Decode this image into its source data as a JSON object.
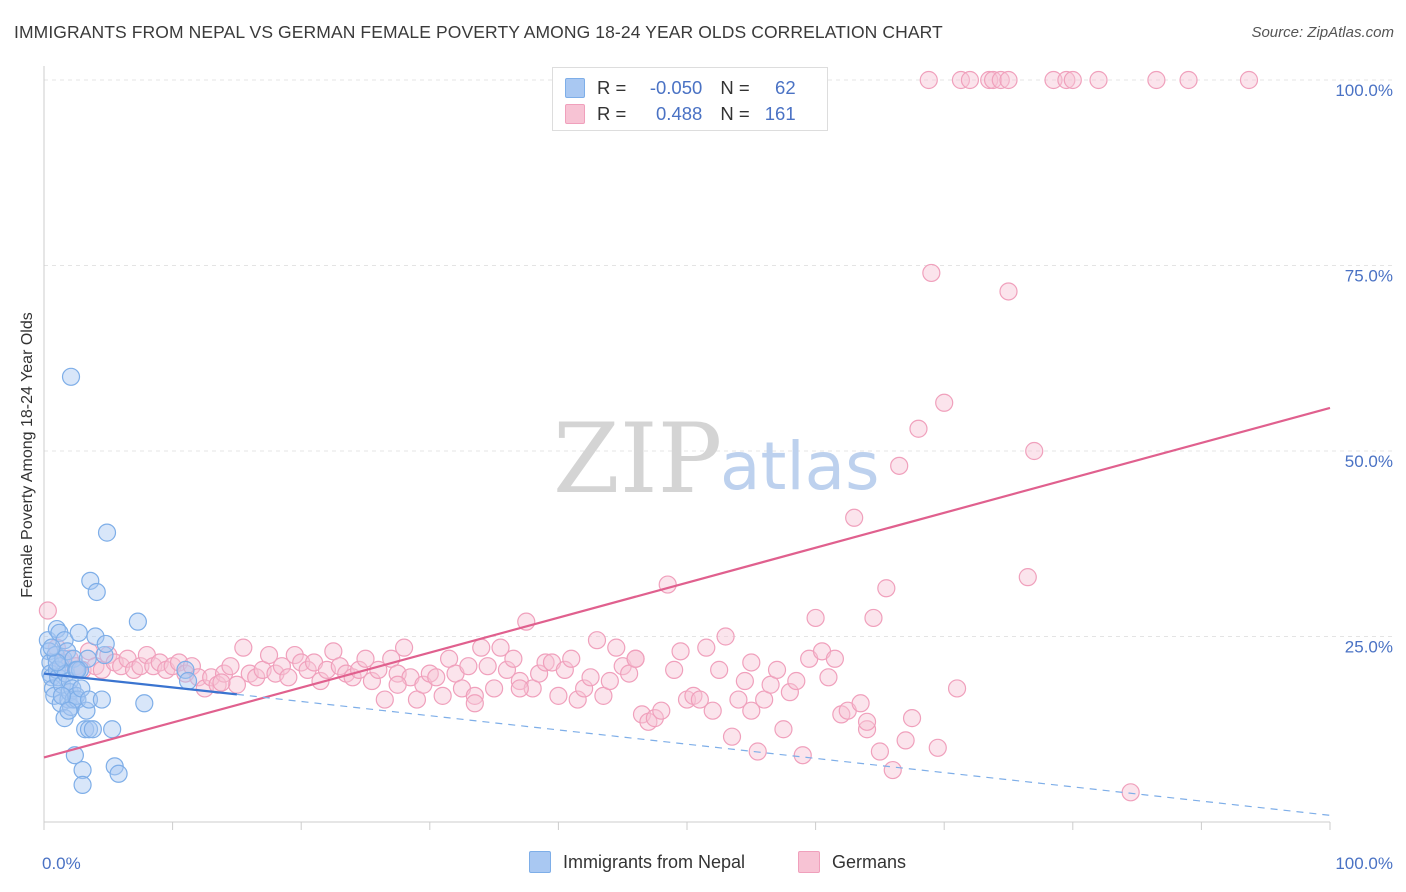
{
  "title": "IMMIGRANTS FROM NEPAL VS GERMAN FEMALE POVERTY AMONG 18-24 YEAR OLDS CORRELATION CHART",
  "source": "Source: ZipAtlas.com",
  "watermark": {
    "zip": "ZIP",
    "atlas": "atlas"
  },
  "colors": {
    "blue": "#7eaee8",
    "blue_line": "#3a74d0",
    "pink": "#f0a0bc",
    "pink_line": "#e0608e",
    "tick": "#4a72c4"
  },
  "legend": {
    "rows": [
      {
        "r_label": "R =",
        "r_value": "-0.050",
        "n_label": "N =",
        "n_value": "62",
        "color": "#a9c8f2"
      },
      {
        "r_label": "R =",
        "r_value": "0.488",
        "n_label": "N =",
        "n_value": "161",
        "color": "#f7c3d4"
      }
    ]
  },
  "chart_data": {
    "type": "scatter",
    "title": "IMMIGRANTS FROM NEPAL VS GERMAN FEMALE POVERTY AMONG 18-24 YEAR OLDS CORRELATION CHART",
    "xlabel": "",
    "ylabel": "Female Poverty Among 18-24 Year Olds",
    "xlim": [
      0,
      100
    ],
    "ylim": [
      0,
      100
    ],
    "x_tick_labels": [
      "0.0%",
      "100.0%"
    ],
    "y_tick_labels": [
      "25.0%",
      "50.0%",
      "75.0%",
      "100.0%"
    ],
    "y_ticks": [
      25,
      50,
      75,
      100
    ],
    "grid": true,
    "legend_position": "top-center",
    "series": [
      {
        "name": "Immigrants from Nepal",
        "color": "#7eaee8",
        "trend": {
          "x": [
            0,
            15
          ],
          "y": [
            20.0,
            17.2
          ],
          "dashed_extension": {
            "x": [
              15,
              100
            ],
            "y": [
              17.2,
              0.9
            ]
          }
        },
        "points": [
          [
            0.3,
            24.5
          ],
          [
            0.4,
            23.0
          ],
          [
            0.5,
            21.5
          ],
          [
            0.5,
            20.0
          ],
          [
            0.6,
            19.5
          ],
          [
            0.7,
            18.0
          ],
          [
            0.8,
            17.0
          ],
          [
            0.9,
            22.5
          ],
          [
            1.0,
            26.0
          ],
          [
            1.0,
            20.5
          ],
          [
            1.1,
            19.5
          ],
          [
            1.2,
            25.5
          ],
          [
            1.3,
            16.0
          ],
          [
            1.3,
            21.0
          ],
          [
            1.4,
            18.5
          ],
          [
            1.5,
            22.0
          ],
          [
            1.6,
            24.5
          ],
          [
            1.6,
            14.0
          ],
          [
            1.7,
            20.0
          ],
          [
            1.8,
            23.0
          ],
          [
            1.9,
            16.5
          ],
          [
            2.0,
            19.0
          ],
          [
            2.0,
            17.5
          ],
          [
            2.1,
            15.5
          ],
          [
            2.2,
            18.0
          ],
          [
            2.3,
            16.5
          ],
          [
            2.3,
            22.0
          ],
          [
            2.4,
            9.0
          ],
          [
            2.5,
            20.5
          ],
          [
            2.5,
            17.0
          ],
          [
            2.6,
            16.5
          ],
          [
            2.7,
            25.5
          ],
          [
            2.8,
            20.5
          ],
          [
            2.9,
            18.0
          ],
          [
            3.0,
            7.0
          ],
          [
            3.0,
            5.0
          ],
          [
            3.2,
            12.5
          ],
          [
            3.3,
            15.0
          ],
          [
            3.5,
            16.5
          ],
          [
            3.5,
            12.5
          ],
          [
            3.8,
            12.5
          ],
          [
            3.4,
            22.0
          ],
          [
            3.6,
            32.5
          ],
          [
            4.0,
            25.0
          ],
          [
            4.1,
            31.0
          ],
          [
            4.5,
            16.5
          ],
          [
            4.7,
            22.5
          ],
          [
            4.8,
            24.0
          ],
          [
            4.9,
            39.0
          ],
          [
            5.3,
            12.5
          ],
          [
            5.5,
            7.5
          ],
          [
            5.8,
            6.5
          ],
          [
            7.3,
            27.0
          ],
          [
            7.8,
            16.0
          ],
          [
            11.0,
            20.5
          ],
          [
            11.2,
            19.0
          ],
          [
            2.1,
            60.0
          ],
          [
            1.0,
            21.5
          ],
          [
            1.4,
            17.0
          ],
          [
            0.6,
            23.5
          ],
          [
            2.6,
            20.5
          ],
          [
            1.9,
            15.0
          ]
        ]
      },
      {
        "name": "Germans",
        "color": "#f0a0bc",
        "trend": {
          "x": [
            0,
            100
          ],
          "y": [
            8.7,
            55.8
          ]
        },
        "points": [
          [
            0.3,
            28.5
          ],
          [
            1.0,
            23.5
          ],
          [
            1.5,
            21.5
          ],
          [
            2.0,
            22.0
          ],
          [
            2.5,
            21.0
          ],
          [
            3.0,
            20.5
          ],
          [
            3.5,
            23.0
          ],
          [
            4.0,
            21.0
          ],
          [
            4.5,
            20.5
          ],
          [
            5.0,
            22.5
          ],
          [
            5.5,
            21.5
          ],
          [
            6.0,
            21.0
          ],
          [
            6.5,
            22.0
          ],
          [
            7.0,
            20.5
          ],
          [
            7.5,
            21.0
          ],
          [
            8.0,
            22.5
          ],
          [
            8.5,
            21.0
          ],
          [
            9.0,
            21.5
          ],
          [
            9.5,
            20.5
          ],
          [
            10.0,
            21.0
          ],
          [
            10.5,
            21.5
          ],
          [
            11.0,
            20.0
          ],
          [
            11.5,
            21.0
          ],
          [
            12.0,
            19.5
          ],
          [
            12.5,
            18.0
          ],
          [
            13.0,
            19.5
          ],
          [
            13.5,
            18.5
          ],
          [
            14.0,
            20.0
          ],
          [
            14.5,
            21.0
          ],
          [
            15.0,
            18.5
          ],
          [
            15.5,
            23.5
          ],
          [
            16.0,
            20.0
          ],
          [
            16.5,
            19.5
          ],
          [
            17.0,
            20.5
          ],
          [
            17.5,
            22.5
          ],
          [
            18.0,
            20.0
          ],
          [
            18.5,
            21.0
          ],
          [
            19.0,
            19.5
          ],
          [
            19.5,
            22.5
          ],
          [
            20.0,
            21.5
          ],
          [
            20.5,
            20.5
          ],
          [
            21.0,
            21.5
          ],
          [
            21.5,
            19.0
          ],
          [
            22.0,
            20.5
          ],
          [
            22.5,
            23.0
          ],
          [
            23.0,
            21.0
          ],
          [
            23.5,
            20.0
          ],
          [
            24.0,
            19.5
          ],
          [
            24.5,
            20.5
          ],
          [
            25.0,
            22.0
          ],
          [
            25.5,
            19.0
          ],
          [
            26.0,
            20.5
          ],
          [
            26.5,
            16.5
          ],
          [
            27.0,
            22.0
          ],
          [
            27.5,
            20.0
          ],
          [
            28.0,
            23.5
          ],
          [
            28.5,
            19.5
          ],
          [
            29.0,
            16.5
          ],
          [
            29.5,
            18.5
          ],
          [
            30.0,
            20.0
          ],
          [
            30.5,
            19.5
          ],
          [
            31.0,
            17.0
          ],
          [
            31.5,
            22.0
          ],
          [
            32.0,
            20.0
          ],
          [
            32.5,
            18.0
          ],
          [
            33.0,
            21.0
          ],
          [
            33.5,
            17.0
          ],
          [
            34.0,
            23.5
          ],
          [
            34.5,
            21.0
          ],
          [
            35.0,
            18.0
          ],
          [
            35.5,
            23.5
          ],
          [
            36.0,
            20.5
          ],
          [
            36.5,
            22.0
          ],
          [
            37.0,
            19.0
          ],
          [
            37.5,
            27.0
          ],
          [
            38.0,
            18.0
          ],
          [
            38.5,
            20.0
          ],
          [
            39.0,
            21.5
          ],
          [
            39.5,
            21.5
          ],
          [
            40.0,
            17.0
          ],
          [
            40.5,
            20.5
          ],
          [
            41.0,
            22.0
          ],
          [
            41.5,
            16.5
          ],
          [
            42.0,
            18.0
          ],
          [
            42.5,
            19.5
          ],
          [
            43.0,
            24.5
          ],
          [
            43.5,
            17.0
          ],
          [
            44.0,
            19.0
          ],
          [
            44.5,
            23.5
          ],
          [
            45.0,
            21.0
          ],
          [
            45.5,
            20.0
          ],
          [
            46.0,
            22.0
          ],
          [
            46.5,
            14.5
          ],
          [
            47.0,
            13.5
          ],
          [
            47.5,
            14.0
          ],
          [
            48.0,
            15.0
          ],
          [
            48.5,
            32.0
          ],
          [
            49.0,
            20.5
          ],
          [
            49.5,
            23.0
          ],
          [
            50.0,
            16.5
          ],
          [
            50.5,
            17.0
          ],
          [
            51.0,
            16.5
          ],
          [
            51.5,
            23.5
          ],
          [
            52.0,
            15.0
          ],
          [
            52.5,
            20.5
          ],
          [
            53.0,
            25.0
          ],
          [
            53.5,
            11.5
          ],
          [
            54.0,
            16.5
          ],
          [
            54.5,
            19.0
          ],
          [
            55.0,
            15.0
          ],
          [
            55.5,
            9.5
          ],
          [
            56.0,
            16.5
          ],
          [
            56.5,
            18.5
          ],
          [
            57.0,
            20.5
          ],
          [
            57.5,
            12.5
          ],
          [
            58.0,
            17.5
          ],
          [
            58.5,
            19.0
          ],
          [
            59.0,
            9.0
          ],
          [
            59.5,
            22.0
          ],
          [
            60.0,
            27.5
          ],
          [
            60.5,
            23.0
          ],
          [
            61.0,
            19.5
          ],
          [
            61.5,
            22.0
          ],
          [
            62.0,
            14.5
          ],
          [
            62.5,
            15.0
          ],
          [
            63.0,
            41.0
          ],
          [
            63.5,
            16.0
          ],
          [
            64.0,
            12.5
          ],
          [
            64.5,
            27.5
          ],
          [
            65.0,
            9.5
          ],
          [
            65.5,
            31.5
          ],
          [
            66.0,
            7.0
          ],
          [
            66.5,
            48.0
          ],
          [
            67.0,
            11.0
          ],
          [
            67.5,
            14.0
          ],
          [
            68.0,
            53.0
          ],
          [
            69.0,
            74.0
          ],
          [
            69.5,
            10.0
          ],
          [
            70.0,
            56.5
          ],
          [
            71.0,
            18.0
          ],
          [
            75.0,
            71.5
          ],
          [
            76.5,
            33.0
          ],
          [
            77.0,
            50.0
          ],
          [
            84.5,
            4.0
          ],
          [
            68.8,
            100
          ],
          [
            71.3,
            100
          ],
          [
            72.0,
            100
          ],
          [
            73.5,
            100
          ],
          [
            73.8,
            100
          ],
          [
            74.4,
            100
          ],
          [
            75.0,
            100
          ],
          [
            78.5,
            100
          ],
          [
            79.5,
            100
          ],
          [
            80.0,
            100
          ],
          [
            82.0,
            100
          ],
          [
            86.5,
            100
          ],
          [
            89.0,
            100
          ],
          [
            93.7,
            100
          ],
          [
            46.0,
            22.0
          ],
          [
            55.0,
            21.5
          ],
          [
            33.5,
            16.0
          ],
          [
            13.8,
            18.8
          ],
          [
            37.0,
            18.0
          ],
          [
            27.5,
            18.5
          ],
          [
            64.0,
            13.5
          ]
        ]
      }
    ]
  },
  "bottom_legend": [
    {
      "label": "Immigrants from Nepal",
      "color": "#a9c8f2"
    },
    {
      "label": "Germans",
      "color": "#f7c3d4"
    }
  ]
}
